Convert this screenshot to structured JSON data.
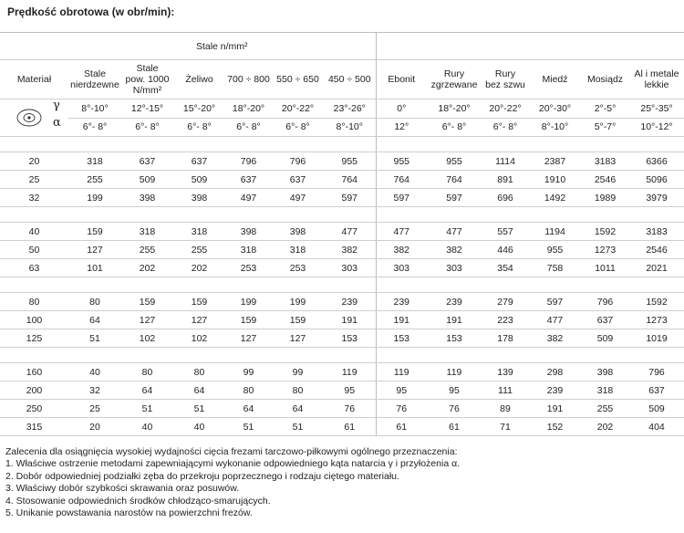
{
  "header": {
    "title": "Prędkość obrotowa (w obr/min):"
  },
  "table": {
    "group_header": "Stale n/mm²",
    "columns": [
      "Materiał",
      [
        "Stale",
        "nierdzewne"
      ],
      [
        "Stale",
        "pow. 1000",
        "N/mm²"
      ],
      "Żeliwo",
      "700 ÷ 800",
      "550 ÷ 650",
      "450 ÷ 500",
      "Ebonit",
      [
        "Rury",
        "zgrzewane"
      ],
      [
        "Rury",
        "bez szwu"
      ],
      "Miedź",
      "Mosiądz",
      [
        "Al i metale",
        "lekkie"
      ]
    ],
    "angles": [
      {
        "symbol": "γ",
        "values": [
          "8°-10°",
          "12°-15°",
          "15°-20°",
          "18°-20°",
          "20°-22°",
          "23°-26°",
          "0°",
          "18°-20°",
          "20°-22°",
          "20°-30°",
          "2°-5°",
          "25°-35°"
        ]
      },
      {
        "symbol": "α",
        "values": [
          "6°- 8°",
          "6°- 8°",
          "6°- 8°",
          "6°- 8°",
          "6°- 8°",
          "8°-10°",
          "12°",
          "6°- 8°",
          "6°- 8°",
          "8°-10°",
          "5°-7°",
          "10°-12°"
        ]
      }
    ],
    "groups": [
      [
        [
          20,
          318,
          637,
          637,
          796,
          796,
          955,
          955,
          955,
          1114,
          2387,
          3183,
          6366
        ],
        [
          25,
          255,
          509,
          509,
          637,
          637,
          764,
          764,
          764,
          891,
          1910,
          2546,
          5096
        ],
        [
          32,
          199,
          398,
          398,
          497,
          497,
          597,
          597,
          597,
          696,
          1492,
          1989,
          3979
        ]
      ],
      [
        [
          40,
          159,
          318,
          318,
          398,
          398,
          477,
          477,
          477,
          557,
          1194,
          1592,
          3183
        ],
        [
          50,
          127,
          255,
          255,
          318,
          318,
          382,
          382,
          382,
          446,
          955,
          1273,
          2546
        ],
        [
          63,
          101,
          202,
          202,
          253,
          253,
          303,
          303,
          303,
          354,
          758,
          1011,
          2021
        ]
      ],
      [
        [
          80,
          80,
          159,
          159,
          199,
          199,
          239,
          239,
          239,
          279,
          597,
          796,
          1592
        ],
        [
          100,
          64,
          127,
          127,
          159,
          159,
          191,
          191,
          191,
          223,
          477,
          637,
          1273
        ],
        [
          125,
          51,
          102,
          102,
          127,
          127,
          153,
          153,
          153,
          178,
          382,
          509,
          1019
        ]
      ],
      [
        [
          160,
          40,
          80,
          80,
          99,
          99,
          119,
          119,
          119,
          139,
          298,
          398,
          796
        ],
        [
          200,
          32,
          64,
          64,
          80,
          80,
          95,
          95,
          95,
          111,
          239,
          318,
          637
        ],
        [
          250,
          25,
          51,
          51,
          64,
          64,
          76,
          76,
          76,
          89,
          191,
          255,
          509
        ],
        [
          315,
          20,
          40,
          40,
          51,
          51,
          61,
          61,
          61,
          71,
          152,
          202,
          404
        ]
      ]
    ]
  },
  "notes": {
    "intro": "Zalecenia dla osiągnięcia wysokiej wydajności cięcia frezami tarczowo-piłkowymi ogólnego przeznaczenia:",
    "items": [
      "1. Właściwe ostrzenie metodami zapewniającymi wykonanie odpowiedniego kąta natarcia γ i przyłożenia α.",
      "2. Dobór odpowiedniej podziałki zęba do przekroju poprzecznego i rodzaju ciętego materiału.",
      "3. Właściwy dobór szybkości skrawania oraz posuwów.",
      "4. Stosowanie odpowiednich środków chłodząco-smarujących.",
      "5. Unikanie powstawania narostów na powierzchni frezów."
    ]
  }
}
